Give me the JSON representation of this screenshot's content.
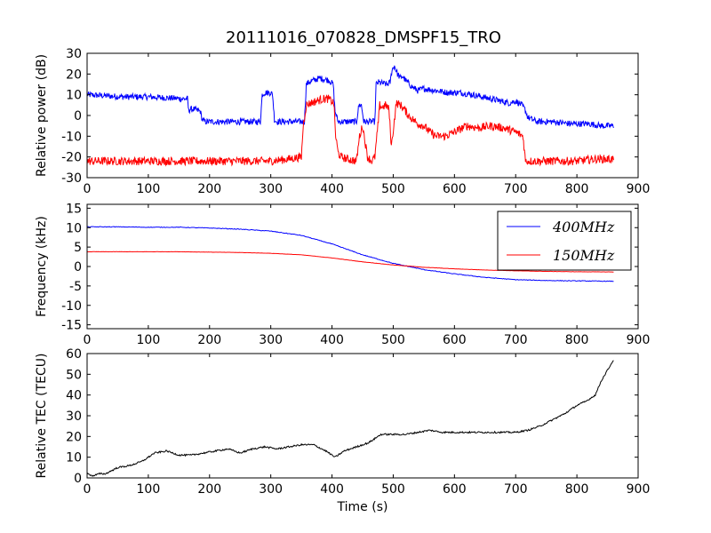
{
  "figure_title": "20111016_070828_DMSPF15_TRO",
  "chart_data": [
    {
      "type": "line",
      "ylabel": "Relative power (dB)",
      "xlim": [
        0,
        900
      ],
      "ylim": [
        -30,
        30
      ],
      "xticks": [
        0,
        100,
        200,
        300,
        400,
        500,
        600,
        700,
        800,
        900
      ],
      "yticks": [
        -30,
        -20,
        -10,
        0,
        10,
        20,
        30
      ],
      "grid": false,
      "series": [
        {
          "color": "#0000ff",
          "noise": 1.5,
          "x": [
            0,
            30,
            60,
            100,
            130,
            160,
            164,
            166,
            168,
            175,
            185,
            188,
            192,
            200,
            220,
            240,
            260,
            283,
            286,
            290,
            300,
            303,
            306,
            310,
            320,
            340,
            355,
            358,
            362,
            370,
            380,
            395,
            402,
            405,
            410,
            430,
            440,
            444,
            448,
            452,
            456,
            470,
            472,
            476,
            490,
            495,
            498,
            502,
            507,
            512,
            515,
            520,
            530,
            540,
            550,
            570,
            590,
            610,
            630,
            660,
            690,
            700,
            710,
            715,
            720,
            735,
            760,
            790,
            820,
            840,
            860
          ],
          "y": [
            10,
            9.5,
            9,
            9,
            8.5,
            8,
            8,
            2,
            3,
            3,
            2,
            -2,
            -3,
            -3,
            -3,
            -3,
            -3,
            -3,
            10,
            11,
            11,
            10,
            -2,
            -3,
            -3,
            -3,
            -3,
            15,
            16,
            17,
            18,
            17,
            15,
            2,
            -3,
            -3,
            -3,
            5,
            5,
            -3,
            -3,
            -3,
            15,
            16,
            15,
            16,
            22,
            24,
            20,
            18,
            19,
            17,
            14,
            12,
            13,
            12,
            11,
            11,
            10,
            8,
            6,
            7,
            5,
            3,
            -1,
            -3,
            -3,
            -4,
            -4,
            -5,
            -5
          ]
        },
        {
          "color": "#ff0000",
          "noise": 2,
          "x": [
            0,
            50,
            100,
            150,
            200,
            250,
            300,
            330,
            350,
            353,
            358,
            365,
            375,
            385,
            395,
            403,
            406,
            410,
            415,
            425,
            440,
            445,
            450,
            458,
            465,
            470,
            475,
            478,
            482,
            488,
            493,
            497,
            505,
            512,
            518,
            525,
            540,
            550,
            560,
            570,
            585,
            600,
            620,
            640,
            660,
            680,
            700,
            712,
            716,
            720,
            740,
            770,
            800,
            830,
            860
          ],
          "y": [
            -22,
            -22,
            -22,
            -22,
            -22,
            -22,
            -22,
            -21,
            -20,
            -5,
            5,
            6,
            7,
            8,
            8,
            6,
            -10,
            -18,
            -20,
            -21,
            -22,
            -10,
            -5,
            -20,
            -22,
            -20,
            -5,
            5,
            4,
            5,
            3,
            -15,
            6,
            5,
            3,
            0,
            -4,
            -5,
            -8,
            -10,
            -10,
            -8,
            -5,
            -6,
            -5,
            -6,
            -8,
            -10,
            -22,
            -22,
            -22,
            -22,
            -22,
            -21,
            -21
          ]
        }
      ]
    },
    {
      "type": "line",
      "ylabel": "Frequency (kHz)",
      "xlim": [
        0,
        900
      ],
      "ylim": [
        -16,
        16
      ],
      "xticks": [
        0,
        100,
        200,
        300,
        400,
        500,
        600,
        700,
        800,
        900
      ],
      "yticks": [
        -15,
        -10,
        -5,
        0,
        5,
        10,
        15
      ],
      "grid": false,
      "legend": {
        "position": "top-right"
      },
      "series": [
        {
          "name": "400MHz",
          "color": "#0000ff",
          "noise": 0.08,
          "x": [
            0,
            50,
            100,
            150,
            200,
            250,
            300,
            350,
            400,
            450,
            500,
            550,
            600,
            650,
            700,
            750,
            800,
            860
          ],
          "y": [
            10.2,
            10.2,
            10.1,
            10.1,
            9.9,
            9.6,
            9.1,
            8.0,
            5.8,
            3.0,
            0.8,
            -0.8,
            -1.9,
            -2.8,
            -3.4,
            -3.6,
            -3.7,
            -3.8
          ]
        },
        {
          "name": "150MHz",
          "color": "#ff0000",
          "noise": 0.03,
          "x": [
            0,
            50,
            100,
            150,
            200,
            250,
            300,
            350,
            400,
            450,
            500,
            550,
            600,
            650,
            700,
            750,
            800,
            860
          ],
          "y": [
            3.8,
            3.8,
            3.8,
            3.8,
            3.7,
            3.6,
            3.4,
            3.0,
            2.2,
            1.2,
            0.4,
            -0.2,
            -0.6,
            -0.9,
            -1.1,
            -1.25,
            -1.35,
            -1.4
          ]
        }
      ]
    },
    {
      "type": "line",
      "ylabel": "Relative TEC (TECU)",
      "xlabel": "Time (s)",
      "xlim": [
        0,
        900
      ],
      "ylim": [
        0,
        60
      ],
      "xticks": [
        0,
        100,
        200,
        300,
        400,
        500,
        600,
        700,
        800,
        900
      ],
      "yticks": [
        0,
        10,
        20,
        30,
        40,
        50,
        60
      ],
      "grid": false,
      "series": [
        {
          "color": "#000000",
          "noise": 0.4,
          "x": [
            0,
            10,
            20,
            30,
            50,
            70,
            90,
            110,
            130,
            150,
            170,
            190,
            210,
            230,
            250,
            270,
            290,
            310,
            330,
            350,
            370,
            390,
            405,
            420,
            440,
            460,
            475,
            480,
            500,
            520,
            540,
            560,
            580,
            600,
            620,
            640,
            660,
            680,
            700,
            720,
            740,
            760,
            780,
            800,
            815,
            820,
            830,
            840,
            850,
            860
          ],
          "y": [
            2,
            1,
            2,
            2,
            5,
            6,
            8,
            12,
            13,
            11,
            11,
            12,
            13,
            14,
            12,
            14,
            15,
            14,
            15,
            16,
            16,
            13,
            10,
            13,
            15,
            17,
            20,
            21,
            21,
            21,
            22,
            23,
            22,
            22,
            22,
            22,
            22,
            22,
            22,
            23,
            25,
            28,
            31,
            35,
            37,
            38,
            40,
            47,
            52,
            57
          ]
        }
      ]
    }
  ]
}
